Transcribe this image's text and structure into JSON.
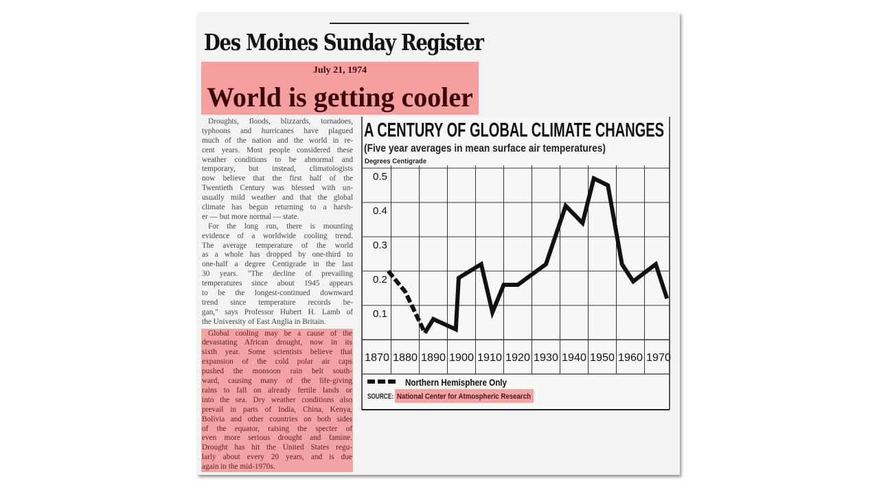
{
  "newspaper": {
    "masthead": "Des Moines Sunday Register",
    "date": "July 21, 1974",
    "headline": "World is getting cooler",
    "highlight_color": "#f4a3a3"
  },
  "article": {
    "paragraphs": [
      {
        "highlighted": false,
        "lines": [
          "Droughts, floods, blizzards, tornadoes,",
          "typhoons and hurricanes have plagued",
          "much of the nation and the world in re-",
          "cent years. Most people considered these",
          "weather conditions to be abnormal and",
          "temporary, but instead, climatologists",
          "now believe that the first half of the",
          "Twentieth Century was blessed with un-",
          "usually mild weather and that the global",
          "climate has begun returning to a harsh-",
          "er — but more normal — state."
        ]
      },
      {
        "highlighted": false,
        "lines": [
          "For the long run, there is mounting",
          "evidence of a worldwide cooling trend.",
          "The average temperature of the world",
          "as a whole has dropped by one-third to",
          "one-half a degree Centigrade in the last",
          "30 years. \"The decline of prevailing",
          "temperatures since about 1945 appears",
          "to be the longest-continued downward",
          "trend since temperature records be-",
          "gan,\" says Professor Hubert H. Lamb of",
          "the University of East Anglia in Britain."
        ]
      },
      {
        "highlighted": true,
        "lines": [
          "Global cooling may be a cause of the",
          "devastating African drought, now in its",
          "sixth year. Some scientists believe that",
          "expansion of the cold polar air caps",
          "pushed the monsoon rain belt south-",
          "ward, causing many of the life-giving",
          "rains to fall on already fertile lands or",
          "into the sea. Dry weather conditions also",
          "prevail in parts of India, China, Kenya,",
          "Bolivia and other countries on both sides",
          "of the equator, raising the specter of",
          "even more serious drought and famine.",
          "Drought has hit the United States regu-",
          "larly about every 20 years, and is due",
          "again in the mid-1970s."
        ]
      }
    ]
  },
  "chart_data": {
    "type": "line",
    "title": "A CENTURY OF GLOBAL CLIMATE CHANGES",
    "subtitle": "(Five year averages in mean surface air temperatures)",
    "ylabel": "Degrees Centigrade",
    "xlabel": "",
    "xlim": [
      1870,
      1975
    ],
    "ylim": [
      0,
      0.5
    ],
    "x_ticks": [
      "1870",
      "1880",
      "1890",
      "1900",
      "1910",
      "1920",
      "1930",
      "1940",
      "1950",
      "1960",
      "1970"
    ],
    "y_ticks": [
      "0.5",
      "0.4",
      "0.3",
      "0.2",
      "0.1"
    ],
    "grid": true,
    "legend": {
      "dashed_label": "Northern Hemisphere Only",
      "placement": "bottom-left"
    },
    "source_label": "SOURCE:",
    "source": "National Center for Atmospheric Research",
    "dashed_until": 1887,
    "series": [
      {
        "x": [
          1874,
          1880,
          1887,
          1890,
          1898,
          1899,
          1907,
          1911,
          1915,
          1920,
          1930,
          1937,
          1943,
          1947,
          1952,
          1957,
          1961,
          1969,
          1973
        ],
        "y": [
          0.2,
          0.14,
          0.02,
          0.06,
          0.03,
          0.18,
          0.22,
          0.08,
          0.16,
          0.16,
          0.22,
          0.39,
          0.34,
          0.47,
          0.45,
          0.22,
          0.17,
          0.22,
          0.12
        ]
      }
    ]
  }
}
